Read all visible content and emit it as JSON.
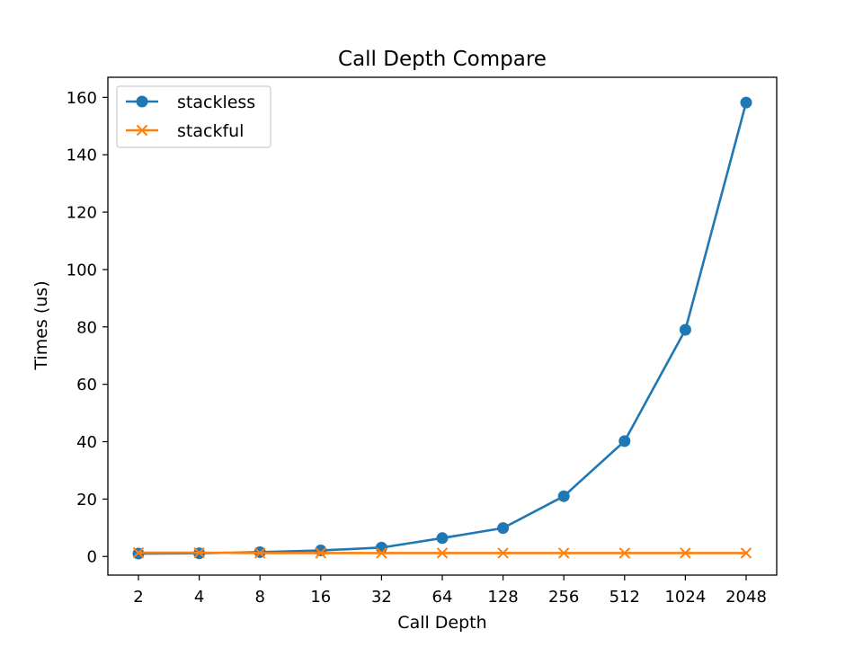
{
  "chart_data": {
    "type": "line",
    "title": "Call Depth Compare",
    "xlabel": "Call Depth",
    "ylabel": "Times (us)",
    "categories": [
      "2",
      "4",
      "8",
      "16",
      "32",
      "64",
      "128",
      "256",
      "512",
      "1024",
      "2048"
    ],
    "ylim": [
      -6.5,
      167
    ],
    "yticks": [
      0,
      20,
      40,
      60,
      80,
      100,
      120,
      140,
      160
    ],
    "grid": false,
    "legend_position": "upper-left",
    "series": [
      {
        "name": "stackless",
        "color": "#1f77b4",
        "marker": "circle",
        "values": [
          1.0,
          1.1,
          1.5,
          2.1,
          3.1,
          6.4,
          9.9,
          21.0,
          40.2,
          79.0,
          158.2
        ]
      },
      {
        "name": "stackful",
        "color": "#ff7f0e",
        "marker": "x",
        "values": [
          1.3,
          1.3,
          1.2,
          1.2,
          1.2,
          1.2,
          1.2,
          1.2,
          1.2,
          1.2,
          1.2
        ]
      }
    ]
  }
}
